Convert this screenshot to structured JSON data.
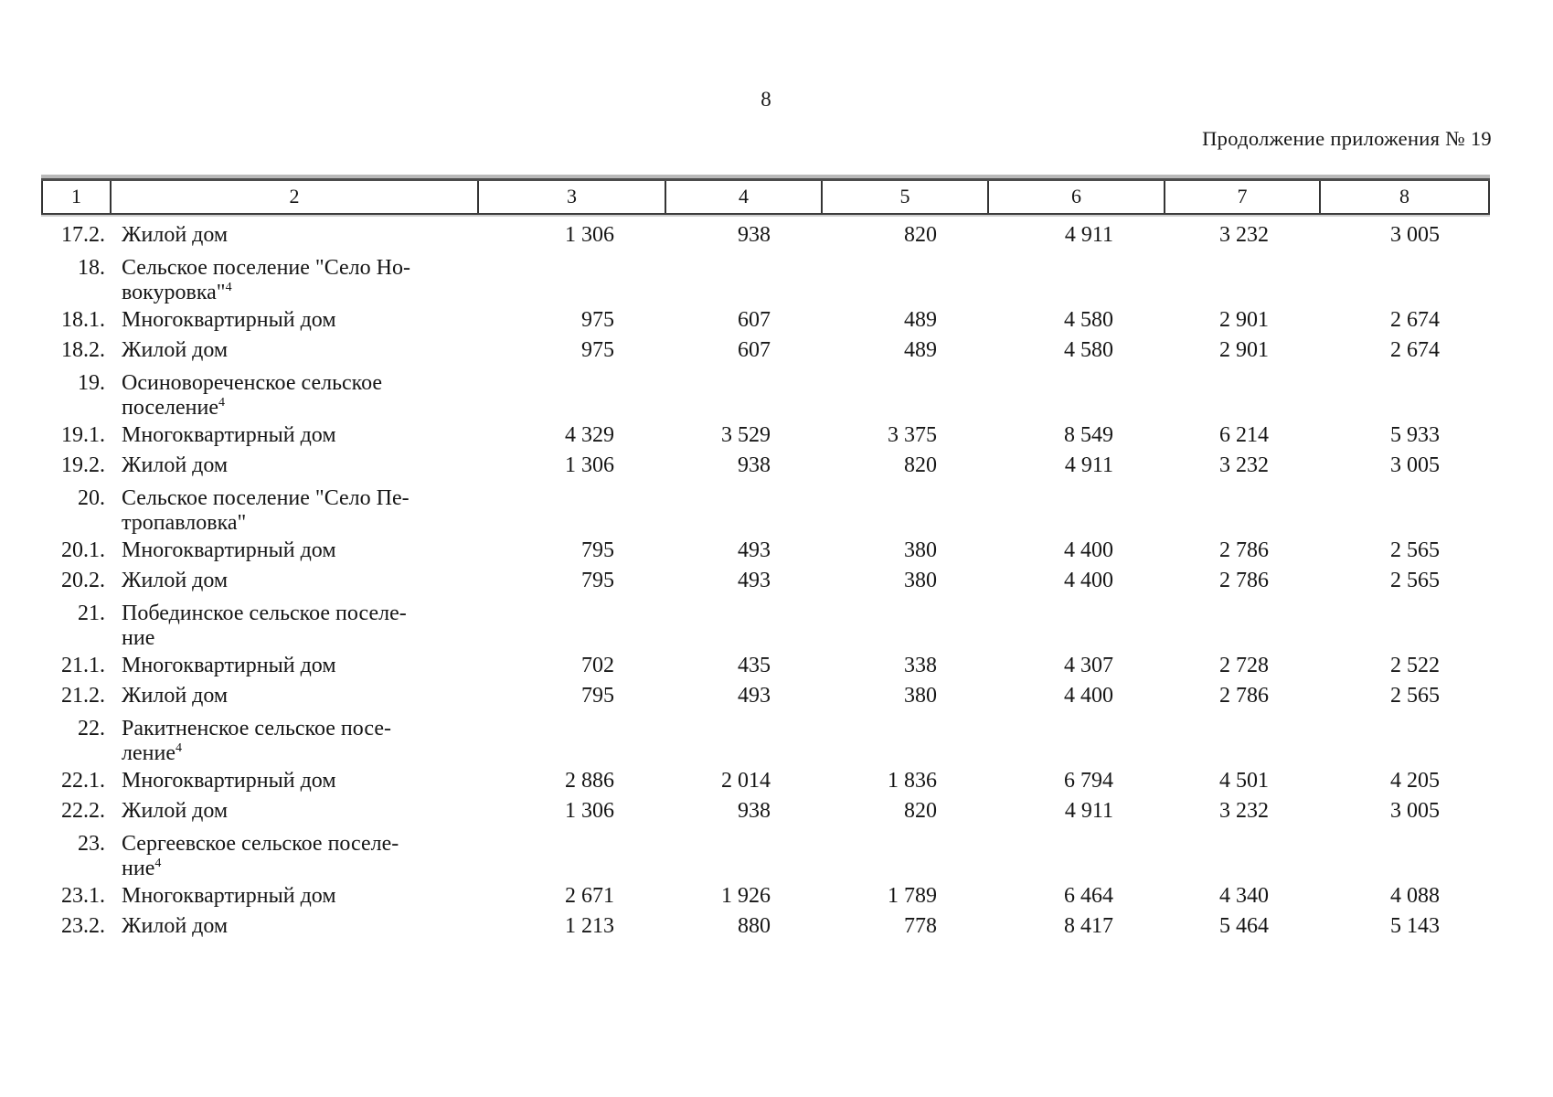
{
  "page": {
    "number": "8",
    "continuation": "Продолжение приложения № 19"
  },
  "table": {
    "header_columns": [
      "1",
      "2",
      "3",
      "4",
      "5",
      "6",
      "7",
      "8"
    ],
    "rows": [
      {
        "num": "17.2.",
        "name_lines": [
          "Жилой дом"
        ],
        "superscript": "",
        "values": [
          "1 306",
          "938",
          "820",
          "4 911",
          "3 232",
          "3 005"
        ]
      },
      {
        "num": "18.",
        "name_lines": [
          "Сельское поселение \"Село Но-",
          "вокуровка\""
        ],
        "superscript": "4",
        "values": [
          "",
          "",
          "",
          "",
          "",
          ""
        ]
      },
      {
        "num": "18.1.",
        "name_lines": [
          "Многоквартирный дом"
        ],
        "superscript": "",
        "values": [
          "975",
          "607",
          "489",
          "4 580",
          "2 901",
          "2 674"
        ]
      },
      {
        "num": "18.2.",
        "name_lines": [
          "Жилой дом"
        ],
        "superscript": "",
        "values": [
          "975",
          "607",
          "489",
          "4 580",
          "2 901",
          "2 674"
        ]
      },
      {
        "num": "19.",
        "name_lines": [
          "Осиновореченское сельское",
          "поселение"
        ],
        "superscript": "4",
        "values": [
          "",
          "",
          "",
          "",
          "",
          ""
        ]
      },
      {
        "num": "19.1.",
        "name_lines": [
          "Многоквартирный дом"
        ],
        "superscript": "",
        "values": [
          "4 329",
          "3 529",
          "3 375",
          "8 549",
          "6 214",
          "5 933"
        ]
      },
      {
        "num": "19.2.",
        "name_lines": [
          "Жилой дом"
        ],
        "superscript": "",
        "values": [
          "1 306",
          "938",
          "820",
          "4 911",
          "3 232",
          "3 005"
        ]
      },
      {
        "num": "20.",
        "name_lines": [
          "Сельское поселение \"Село Пе-",
          "тропавловка\""
        ],
        "superscript": "",
        "values": [
          "",
          "",
          "",
          "",
          "",
          ""
        ]
      },
      {
        "num": "20.1.",
        "name_lines": [
          "Многоквартирный дом"
        ],
        "superscript": "",
        "values": [
          "795",
          "493",
          "380",
          "4 400",
          "2 786",
          "2 565"
        ]
      },
      {
        "num": "20.2.",
        "name_lines": [
          "Жилой дом"
        ],
        "superscript": "",
        "values": [
          "795",
          "493",
          "380",
          "4 400",
          "2 786",
          "2 565"
        ]
      },
      {
        "num": "21.",
        "name_lines": [
          "Побединское сельское поселе-",
          "ние"
        ],
        "superscript": "",
        "values": [
          "",
          "",
          "",
          "",
          "",
          ""
        ]
      },
      {
        "num": "21.1.",
        "name_lines": [
          "Многоквартирный дом"
        ],
        "superscript": "",
        "values": [
          "702",
          "435",
          "338",
          "4 307",
          "2 728",
          "2 522"
        ]
      },
      {
        "num": "21.2.",
        "name_lines": [
          "Жилой дом"
        ],
        "superscript": "",
        "values": [
          "795",
          "493",
          "380",
          "4 400",
          "2 786",
          "2 565"
        ]
      },
      {
        "num": "22.",
        "name_lines": [
          "Ракитненское сельское посе-",
          "ление"
        ],
        "superscript": "4",
        "values": [
          "",
          "",
          "",
          "",
          "",
          ""
        ]
      },
      {
        "num": "22.1.",
        "name_lines": [
          "Многоквартирный дом"
        ],
        "superscript": "",
        "values": [
          "2 886",
          "2 014",
          "1 836",
          "6 794",
          "4 501",
          "4 205"
        ]
      },
      {
        "num": "22.2.",
        "name_lines": [
          "Жилой дом"
        ],
        "superscript": "",
        "values": [
          "1 306",
          "938",
          "820",
          "4 911",
          "3 232",
          "3 005"
        ]
      },
      {
        "num": "23.",
        "name_lines": [
          "Сергеевское сельское поселе-",
          "ние"
        ],
        "superscript": "4",
        "values": [
          "",
          "",
          "",
          "",
          "",
          ""
        ]
      },
      {
        "num": "23.1.",
        "name_lines": [
          "Многоквартирный дом"
        ],
        "superscript": "",
        "values": [
          "2 671",
          "1 926",
          "1 789",
          "6 464",
          "4 340",
          "4 088"
        ]
      },
      {
        "num": "23.2.",
        "name_lines": [
          "Жилой дом"
        ],
        "superscript": "",
        "values": [
          "1 213",
          "880",
          "778",
          "8 417",
          "5 464",
          "5 143"
        ]
      }
    ]
  }
}
